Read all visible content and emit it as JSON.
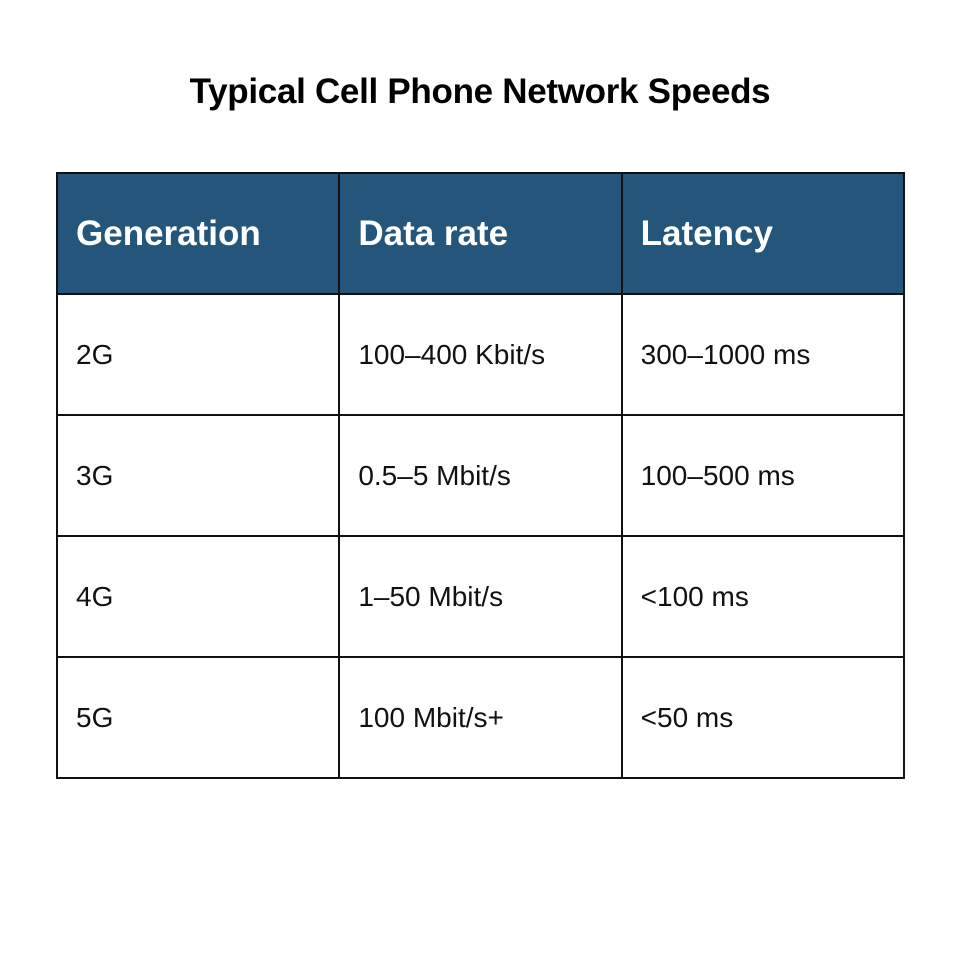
{
  "title": "Typical Cell Phone Network Speeds",
  "table": {
    "headers": [
      "Generation",
      "Data rate",
      "Latency"
    ],
    "rows": [
      [
        "2G",
        "100–400 Kbit/s",
        "300–1000 ms"
      ],
      [
        "3G",
        "0.5–5 Mbit/s",
        "100–500 ms"
      ],
      [
        "4G",
        "1–50 Mbit/s",
        "<100 ms"
      ],
      [
        "5G",
        "100 Mbit/s+",
        "<50 ms"
      ]
    ]
  },
  "colors": {
    "header_bg": "#24557a",
    "header_text": "#ffffff",
    "border": "#111111"
  }
}
